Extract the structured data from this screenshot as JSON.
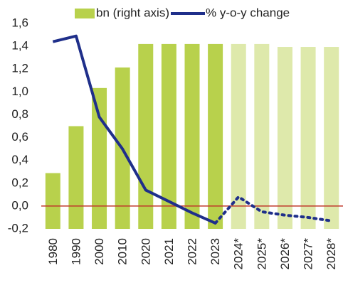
{
  "chart_data": {
    "type": "bar-line",
    "categories": [
      "1980",
      "1990",
      "2000",
      "2010",
      "2020",
      "2021",
      "2022",
      "2023",
      "2024*",
      "2025*",
      "2026*",
      "2027*",
      "2028*"
    ],
    "forecast_from": 8,
    "series": [
      {
        "name": "bn (right axis)",
        "type": "bar",
        "axis": "y2",
        "color": "#b8d14c",
        "forecast_color": "#dee9ab",
        "values": [
          0.99,
          1.15,
          1.28,
          1.35,
          1.43,
          1.43,
          1.43,
          1.43,
          1.43,
          1.43,
          1.42,
          1.42,
          1.42
        ]
      },
      {
        "name": "% y-o-y change",
        "type": "line",
        "color": "#1f2f8a",
        "values": [
          1.44,
          1.49,
          0.78,
          0.5,
          0.14,
          0.04,
          -0.06,
          -0.15,
          0.08,
          -0.05,
          -0.08,
          -0.1,
          -0.13
        ]
      }
    ],
    "ylim": [
      -0.2,
      1.6
    ],
    "yticks": [
      {
        "value": -0.2,
        "label": "-0,2"
      },
      {
        "value": 0,
        "label": "0,0"
      },
      {
        "value": 0.2,
        "label": "0,2"
      },
      {
        "value": 0.4,
        "label": "0,4"
      },
      {
        "value": 0.6,
        "label": "0,6"
      },
      {
        "value": 0.8,
        "label": "0,8"
      },
      {
        "value": 1.0,
        "label": "1,0"
      },
      {
        "value": 1.2,
        "label": "1,2"
      },
      {
        "value": 1.4,
        "label": "1,4"
      },
      {
        "value": 1.6,
        "label": "1,6"
      }
    ],
    "y2lim": [
      0.8,
      1.5
    ],
    "zero_line_color": "#c0392b"
  }
}
